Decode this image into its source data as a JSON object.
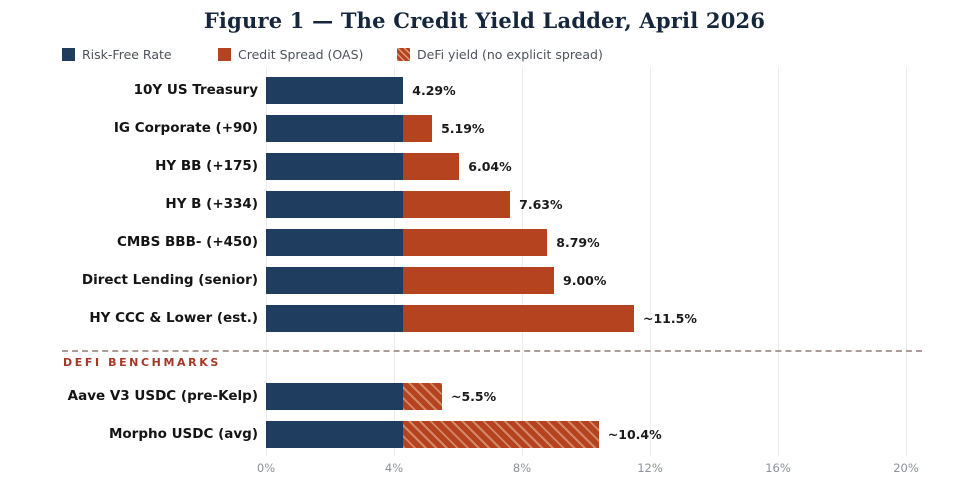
{
  "figure": {
    "title": "Figure 1 — The Credit Yield Ladder, April 2026"
  },
  "legend": {
    "items": [
      {
        "label": "Risk-Free Rate",
        "swatch": "solid-navy",
        "color": "#1f3e5f"
      },
      {
        "label": "Credit Spread (OAS)",
        "swatch": "solid-rust",
        "color": "#b5431f"
      },
      {
        "label": "DeFi yield (no explicit spread)",
        "swatch": "hatched-rust",
        "color": "#b5431f"
      }
    ]
  },
  "colors": {
    "risk_free_bar": "#1f3e5f",
    "credit_spread_bar": "#b5431f",
    "title_text": "#16273d",
    "defi_section_text": "#a33826",
    "gridline": "#ececec",
    "tick_text": "#8d929b"
  },
  "chart_data": {
    "type": "bar",
    "orientation": "horizontal",
    "stacked": true,
    "title": "Figure 1 — The Credit Yield Ladder, April 2026",
    "xlabel": "",
    "ylabel": "",
    "grid": "vertical",
    "legend_position": "top-left",
    "x_axis": {
      "unit": "%",
      "min": 0,
      "max": 20,
      "tick_step": 4,
      "ticks": [
        {
          "value": 0,
          "label": "0%"
        },
        {
          "value": 4,
          "label": "4%"
        },
        {
          "value": 8,
          "label": "8%"
        },
        {
          "value": 12,
          "label": "12%"
        },
        {
          "value": 16,
          "label": "16%"
        },
        {
          "value": 20,
          "label": "20%"
        }
      ]
    },
    "series_names": [
      "Risk-Free Rate",
      "Credit Spread (OAS)",
      "DeFi yield (no explicit spread)"
    ],
    "risk_free_rate": 4.29,
    "rows": [
      {
        "label": "10Y US Treasury",
        "risk_free": 4.29,
        "spread": 0,
        "total": 4.29,
        "value_label": "4.29%",
        "defi": false
      },
      {
        "label": "IG Corporate (+90)",
        "risk_free": 4.29,
        "spread": 0.9,
        "total": 5.19,
        "value_label": "5.19%",
        "defi": false
      },
      {
        "label": "HY BB (+175)",
        "risk_free": 4.29,
        "spread": 1.75,
        "total": 6.04,
        "value_label": "6.04%",
        "defi": false
      },
      {
        "label": "HY B (+334)",
        "risk_free": 4.29,
        "spread": 3.34,
        "total": 7.63,
        "value_label": "7.63%",
        "defi": false
      },
      {
        "label": "CMBS BBB- (+450)",
        "risk_free": 4.29,
        "spread": 4.5,
        "total": 8.79,
        "value_label": "8.79%",
        "defi": false
      },
      {
        "label": "Direct Lending (senior)",
        "risk_free": 4.29,
        "spread": 4.71,
        "total": 9.0,
        "value_label": "9.00%",
        "defi": false
      },
      {
        "label": "HY CCC & Lower (est.)",
        "risk_free": 4.29,
        "spread": 7.21,
        "total": 11.5,
        "value_label": "~11.5%",
        "defi": false
      },
      {
        "label": "Aave V3 USDC (pre-Kelp)",
        "risk_free": 4.29,
        "spread": 1.21,
        "total": 5.5,
        "value_label": "~5.5%",
        "defi": true
      },
      {
        "label": "Morpho USDC (avg)",
        "risk_free": 4.29,
        "spread": 6.11,
        "total": 10.4,
        "value_label": "~10.4%",
        "defi": true
      }
    ],
    "section_divider": {
      "label": "DEFI BENCHMARKS"
    }
  }
}
